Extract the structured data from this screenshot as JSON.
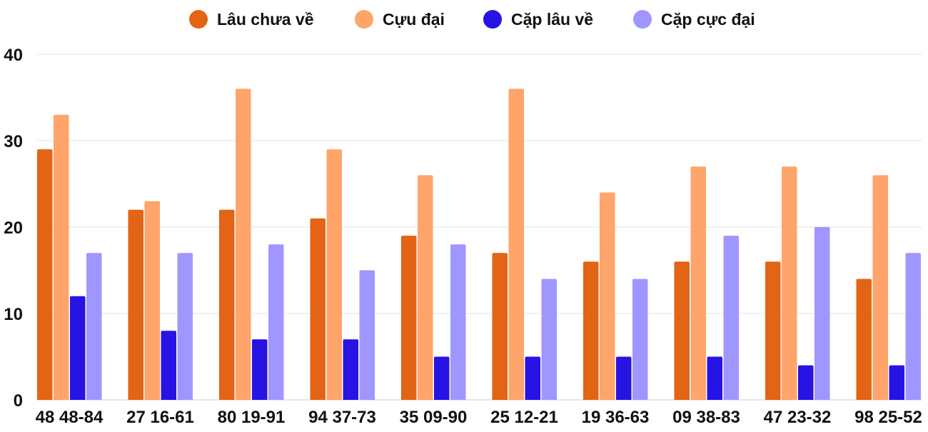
{
  "chart_data": {
    "type": "bar",
    "categories": [
      "48 48-84",
      "27 16-61",
      "80 19-91",
      "94 37-73",
      "35 09-90",
      "25 12-21",
      "19 36-63",
      "09 38-83",
      "47 23-32",
      "98 25-52"
    ],
    "series": [
      {
        "name": "Lâu chưa về",
        "color": "#e26414",
        "values": [
          29,
          22,
          22,
          21,
          19,
          17,
          16,
          16,
          16,
          14
        ]
      },
      {
        "name": "Cựu đại",
        "color": "#ffa46a",
        "values": [
          33,
          23,
          36,
          29,
          26,
          36,
          24,
          27,
          27,
          26
        ]
      },
      {
        "name": "Cặp lâu về",
        "color": "#2713e3",
        "values": [
          12,
          8,
          7,
          7,
          5,
          5,
          5,
          5,
          4,
          4
        ]
      },
      {
        "name": "Cặp cực đại",
        "color": "#a096ff",
        "values": [
          17,
          17,
          18,
          15,
          18,
          14,
          14,
          19,
          20,
          17
        ]
      }
    ],
    "yticks": [
      0,
      10,
      20,
      30,
      40
    ],
    "ylim": [
      0,
      40
    ],
    "grid": true,
    "legend": "top-center",
    "title": "",
    "xlabel": "",
    "ylabel": ""
  }
}
